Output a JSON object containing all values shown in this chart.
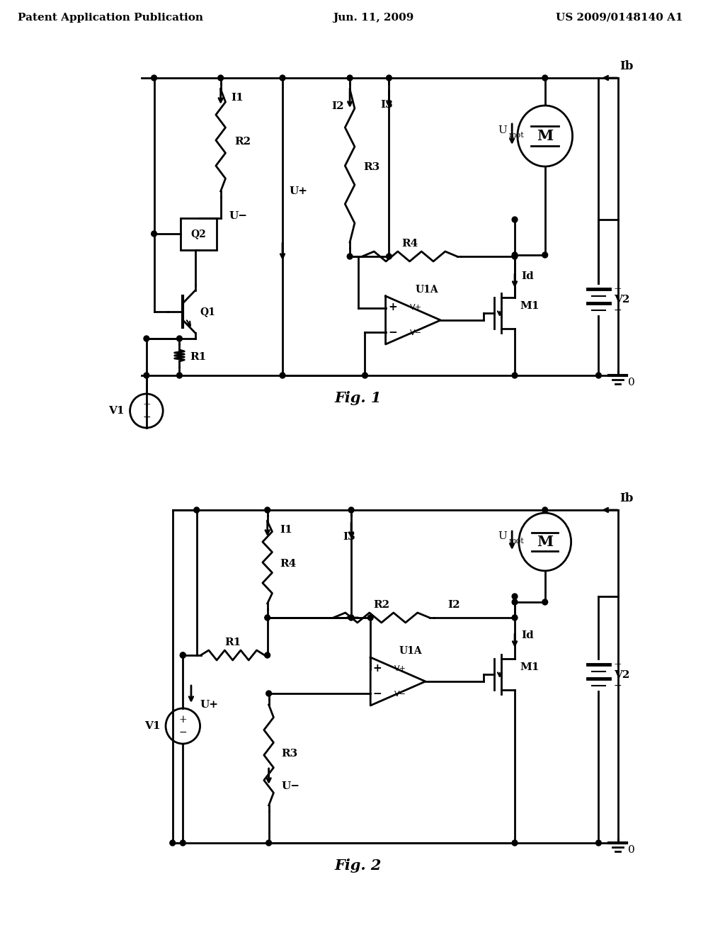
{
  "header_left": "Patent Application Publication",
  "header_center": "Jun. 11, 2009",
  "header_right": "US 2009/0148140 A1",
  "fig1_label": "Fig. 1",
  "fig2_label": "Fig. 2",
  "bg_color": "#ffffff",
  "line_color": "#000000",
  "lw": 2.0
}
